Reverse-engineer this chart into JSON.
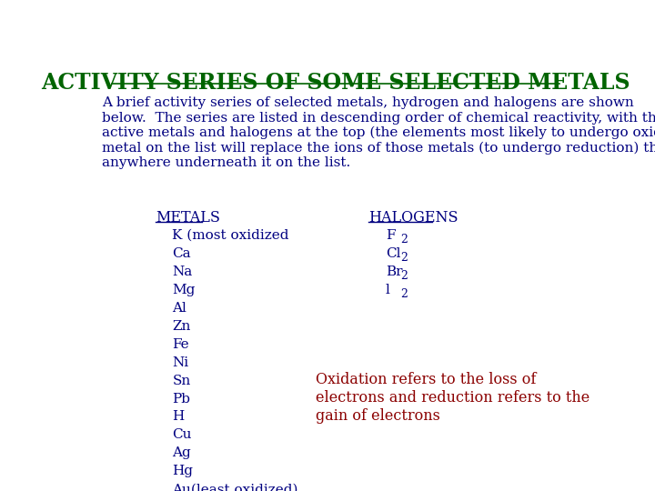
{
  "title": "ACTIVITY SERIES OF SOME SELECTED METALS",
  "title_color": "#006400",
  "title_fontsize": 17,
  "bg_color": "#ffffff",
  "intro_text": "A brief activity series of selected metals, hydrogen and halogens are shown\nbelow.  The series are listed in descending order of chemical reactivity, with the most\nactive metals and halogens at the top (the elements most likely to undergo oxidation).  Any\nmetal on the list will replace the ions of those metals (to undergo reduction) that appear\nanywhere underneath it on the list.",
  "intro_color": "#000080",
  "intro_fontsize": 11,
  "metals_header": "METALS",
  "metals_header_color": "#000080",
  "metals_list": [
    "K (most oxidized",
    "Ca",
    "Na",
    "Mg",
    "Al",
    "Zn",
    "Fe",
    "Ni",
    "Sn",
    "Pb",
    "H",
    "Cu",
    "Ag",
    "Hg",
    "Au(least oxidized)"
  ],
  "metals_color": "#000080",
  "metals_fontsize": 11,
  "halogens_header": "HALOGENS",
  "halogens_header_color": "#000080",
  "halogens_list": [
    [
      "F",
      "2"
    ],
    [
      "Cl",
      "2"
    ],
    [
      "Br",
      "2"
    ],
    [
      "l",
      "2"
    ]
  ],
  "halogens_color": "#000080",
  "halogens_fontsize": 11,
  "oxidation_text": "Oxidation refers to the loss of\nelectrons and reduction refers to the\ngain of electrons",
  "oxidation_color": "#8B0000",
  "oxidation_fontsize": 11.5
}
